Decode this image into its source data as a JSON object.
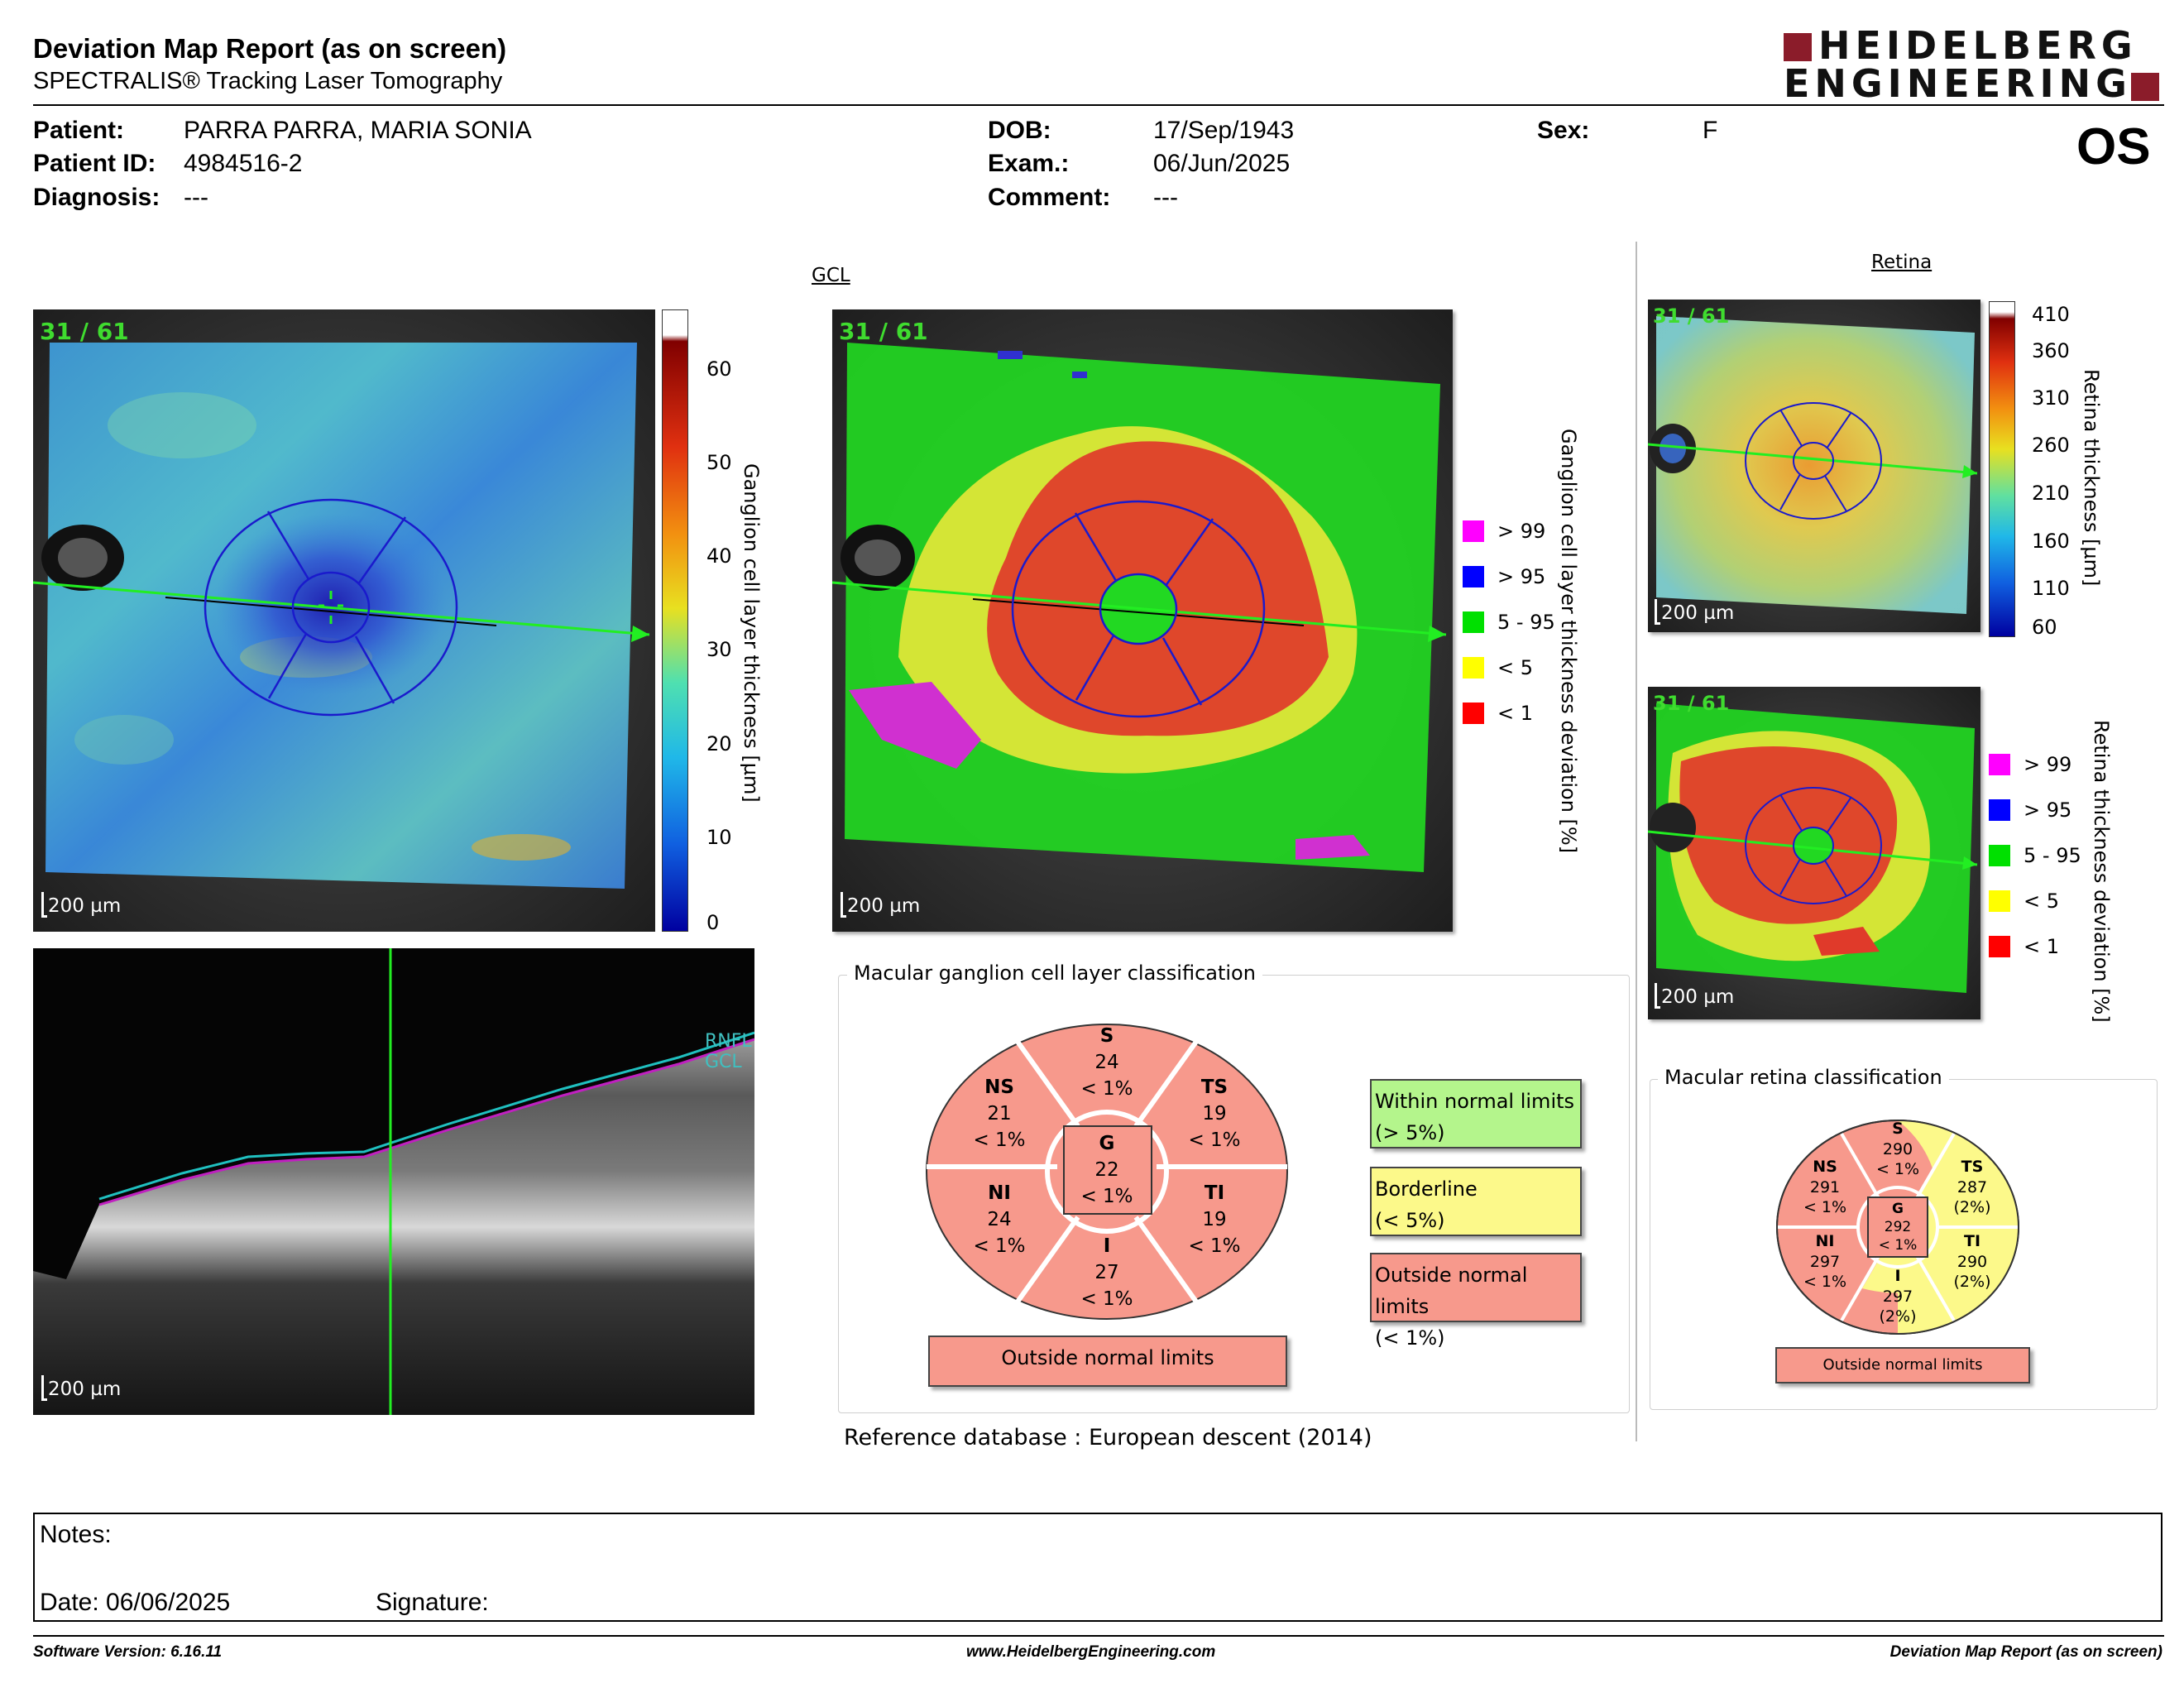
{
  "header": {
    "title": "Deviation Map Report (as on screen)",
    "subtitle": "SPECTRALIS® Tracking Laser Tomography",
    "logo_line1": "HEIDELBERG",
    "logo_line2": "ENGINEERING",
    "eye": "OS"
  },
  "patient": {
    "patient_label": "Patient:",
    "patient_value": "PARRA PARRA, MARIA SONIA",
    "id_label": "Patient ID:",
    "id_value": "4984516-2",
    "diagnosis_label": "Diagnosis:",
    "diagnosis_value": "---",
    "dob_label": "DOB:",
    "dob_value": "17/Sep/1943",
    "exam_label": "Exam.:",
    "exam_value": "06/Jun/2025",
    "comment_label": "Comment:",
    "comment_value": "---",
    "sex_label": "Sex:",
    "sex_value": "F"
  },
  "gcl": {
    "link": "GCL",
    "frame_count": "31 / 61",
    "scale": "200 µm",
    "thickness_label": "Ganglion cell layer thickness [µm]",
    "thickness_ticks": [
      "60",
      "50",
      "40",
      "30",
      "20",
      "10",
      "0"
    ],
    "deviation_label": "Ganglion cell layer thickness deviation [%]",
    "legend": [
      {
        "label": "> 99",
        "color": "#ff00ff"
      },
      {
        "label": "> 95",
        "color": "#0000ff"
      },
      {
        "label": "5 - 95",
        "color": "#00e000"
      },
      {
        "label": "< 5",
        "color": "#ffff00"
      },
      {
        "label": "< 1",
        "color": "#ff0000"
      }
    ]
  },
  "bscan": {
    "layer_label": "RNFL GCL",
    "scale": "200 µm"
  },
  "retina": {
    "link": "Retina",
    "frame_count": "31 / 61",
    "scale": "200 µm",
    "thickness_label": "Retina thickness [µm]",
    "thickness_ticks": [
      "410",
      "360",
      "310",
      "260",
      "210",
      "160",
      "110",
      "60"
    ],
    "deviation_label": "Retina thickness deviation [%]",
    "legend": [
      {
        "label": "> 99",
        "color": "#ff00ff"
      },
      {
        "label": "> 95",
        "color": "#0000ff"
      },
      {
        "label": "5 - 95",
        "color": "#00e000"
      },
      {
        "label": "< 5",
        "color": "#ffff00"
      },
      {
        "label": "< 1",
        "color": "#ff0000"
      }
    ]
  },
  "gcl_classification": {
    "title": "Macular ganglion cell layer classification",
    "sectors": {
      "S": {
        "name": "S",
        "value": "24",
        "pct": "< 1%"
      },
      "NS": {
        "name": "NS",
        "value": "21",
        "pct": "< 1%"
      },
      "TS": {
        "name": "TS",
        "value": "19",
        "pct": "< 1%"
      },
      "G": {
        "name": "G",
        "value": "22",
        "pct": "< 1%"
      },
      "NI": {
        "name": "NI",
        "value": "24",
        "pct": "< 1%"
      },
      "TI": {
        "name": "TI",
        "value": "19",
        "pct": "< 1%"
      },
      "I": {
        "name": "I",
        "value": "27",
        "pct": "< 1%"
      }
    },
    "result": "Outside normal limits",
    "legend_within": "Within normal limits",
    "legend_within_sub": "(> 5%)",
    "legend_border": "Borderline",
    "legend_border_sub": "(< 5%)",
    "legend_outside": "Outside normal limits",
    "legend_outside_sub": "(< 1%)",
    "colors": {
      "outside": "#f7998c",
      "border": "#fcf98a",
      "within": "#b4f58c"
    }
  },
  "retina_classification": {
    "title": "Macular retina classification",
    "sectors": {
      "S": {
        "name": "S",
        "value": "290",
        "pct": "< 1%"
      },
      "NS": {
        "name": "NS",
        "value": "291",
        "pct": "< 1%"
      },
      "TS": {
        "name": "TS",
        "value": "287",
        "pct": "(2%)"
      },
      "G": {
        "name": "G",
        "value": "292",
        "pct": "< 1%"
      },
      "NI": {
        "name": "NI",
        "value": "297",
        "pct": "< 1%"
      },
      "TI": {
        "name": "TI",
        "value": "290",
        "pct": "(2%)"
      },
      "I": {
        "name": "I",
        "value": "297",
        "pct": "(2%)"
      }
    },
    "result": "Outside normal limits"
  },
  "reference": "Reference database :  European descent (2014)",
  "notes": {
    "label": "Notes:",
    "date": "Date: 06/06/2025",
    "signature": "Signature:"
  },
  "footer": {
    "version": "Software Version: 6.16.11",
    "url": "www.HeidelbergEngineering.com",
    "report": "Deviation Map Report (as on screen)"
  }
}
